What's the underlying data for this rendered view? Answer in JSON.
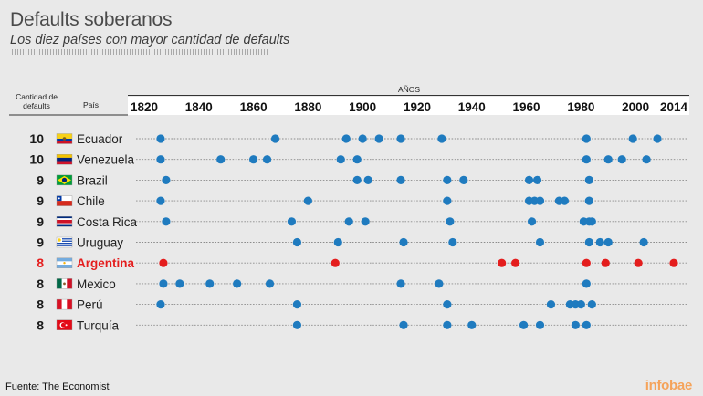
{
  "title": "Defaults soberanos",
  "subtitle": "Los diez países con mayor cantidad de defaults",
  "source": "Fuente: The Economist",
  "brand": "infobae",
  "colors": {
    "dot": "#1f7bbf",
    "highlight": "#e41d1d",
    "text": "#1a1a1a",
    "header_bar": "#ffffff"
  },
  "chart_data": {
    "type": "scatter",
    "title": "Defaults soberanos",
    "subtitle": "Los diez países con mayor cantidad de defaults",
    "xlabel": "AÑOS",
    "column_headers": {
      "count": "Cantidad de defaults",
      "country": "País"
    },
    "x_ticks": [
      1820,
      1840,
      1860,
      1880,
      1900,
      1920,
      1940,
      1960,
      1980,
      2000,
      2014
    ],
    "xlim": [
      1820,
      2014
    ],
    "grid": true,
    "rows": [
      {
        "country": "Ecuador",
        "count": "10",
        "flag": "ecuador-flag",
        "years": [
          1826,
          1868,
          1894,
          1900,
          1906,
          1914,
          1929,
          1982,
          1999,
          2008
        ]
      },
      {
        "country": "Venezuela",
        "count": "10",
        "flag": "venezuela-flag",
        "years": [
          1826,
          1848,
          1860,
          1865,
          1892,
          1898,
          1982,
          1990,
          1995,
          2004
        ]
      },
      {
        "country": "Brazil",
        "count": "9",
        "flag": "brazil-flag",
        "years": [
          1828,
          1898,
          1902,
          1914,
          1931,
          1937,
          1961,
          1964,
          1983
        ]
      },
      {
        "country": "Chile",
        "count": "9",
        "flag": "chile-flag",
        "years": [
          1826,
          1880,
          1931,
          1961,
          1963,
          1965,
          1972,
          1974,
          1983
        ]
      },
      {
        "country": "Costa Rica",
        "count": "9",
        "flag": "costa-rica-flag",
        "years": [
          1828,
          1874,
          1895,
          1901,
          1932,
          1962,
          1981,
          1983,
          1984
        ]
      },
      {
        "country": "Uruguay",
        "count": "9",
        "flag": "uruguay-flag",
        "years": [
          1876,
          1891,
          1915,
          1933,
          1965,
          1983,
          1987,
          1990,
          2003
        ]
      },
      {
        "country": "Argentina",
        "count": "8",
        "flag": "argentina-flag",
        "highlight": true,
        "years": [
          1827,
          1890,
          1951,
          1956,
          1982,
          1989,
          2001,
          2014
        ]
      },
      {
        "country": "Mexico",
        "count": "8",
        "flag": "mexico-flag",
        "years": [
          1827,
          1833,
          1844,
          1854,
          1866,
          1914,
          1928,
          1982
        ]
      },
      {
        "country": "Perú",
        "count": "8",
        "flag": "peru-flag",
        "years": [
          1826,
          1876,
          1931,
          1969,
          1976,
          1978,
          1980,
          1984
        ]
      },
      {
        "country": "Turquía",
        "count": "8",
        "flag": "turquia-flag",
        "years": [
          1876,
          1915,
          1931,
          1940,
          1959,
          1965,
          1978,
          1982
        ]
      }
    ]
  }
}
